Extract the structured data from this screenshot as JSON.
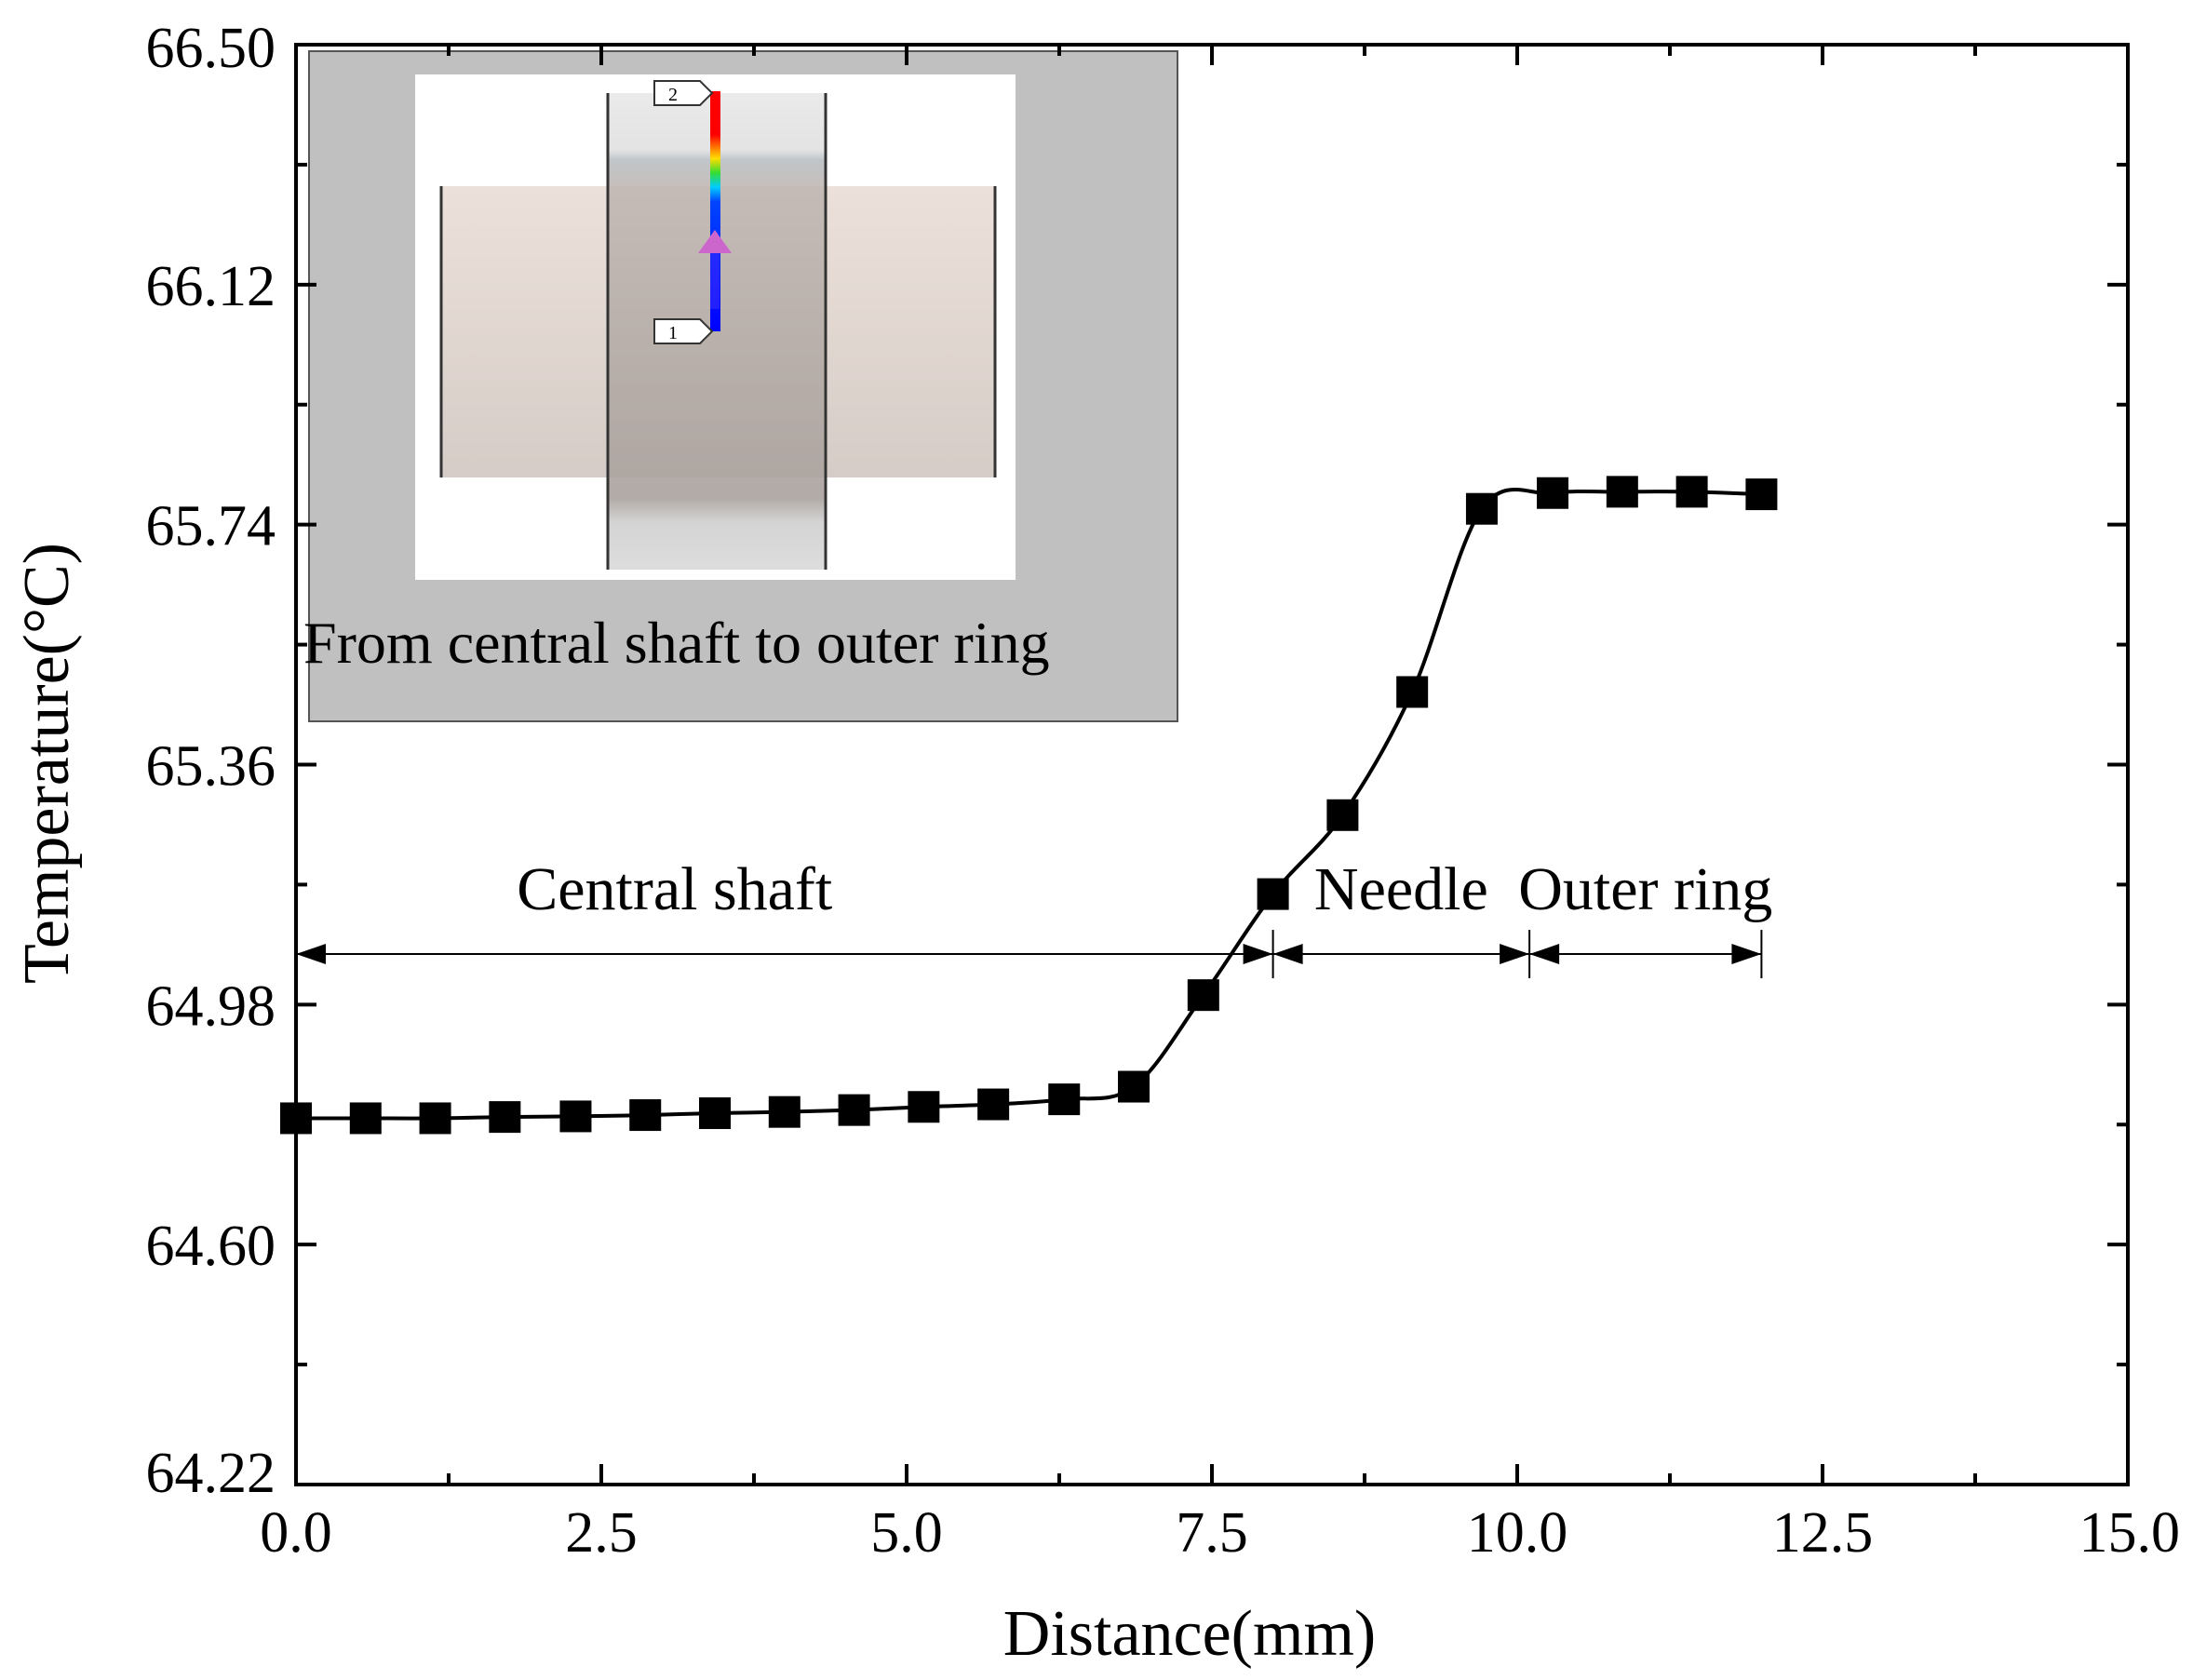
{
  "chart_data": {
    "type": "line",
    "xlabel": "Distance(mm)",
    "ylabel": "Temperature(°C)",
    "xlim": [
      0,
      15
    ],
    "ylim": [
      64.22,
      66.5
    ],
    "x_ticks": [
      0,
      2.5,
      5,
      7.5,
      10,
      12.5,
      15
    ],
    "x_tick_labels": [
      "0.0",
      "2.5",
      "5.0",
      "7.5",
      "10.0",
      "12.5",
      "15.0"
    ],
    "y_ticks": [
      64.22,
      64.6,
      64.98,
      65.36,
      65.74,
      66.12,
      66.5
    ],
    "y_tick_labels": [
      "64.22",
      "64.60",
      "64.98",
      "65.36",
      "65.74",
      "66.12",
      "66.50"
    ],
    "grid": false,
    "series": [
      {
        "name": "Temperature",
        "marker": "square",
        "color": "#000000",
        "x": [
          0.0,
          0.57,
          1.14,
          1.71,
          2.29,
          2.86,
          3.43,
          4.0,
          4.57,
          5.14,
          5.71,
          6.29,
          6.86,
          7.43,
          8.0,
          8.57,
          9.14,
          9.71,
          10.29,
          10.86,
          11.43,
          12.0
        ],
        "y": [
          64.8,
          64.8,
          64.8,
          64.802,
          64.803,
          64.805,
          64.808,
          64.81,
          64.813,
          64.818,
          64.822,
          64.83,
          64.85,
          64.995,
          65.155,
          65.28,
          65.475,
          65.765,
          65.79,
          65.792,
          65.792,
          65.788
        ]
      }
    ],
    "annotations": [
      {
        "text": "Central shaft",
        "from_x": 0.0,
        "to_x": 8.0,
        "y": 65.06
      },
      {
        "text": "Needle",
        "from_x": 8.0,
        "to_x": 10.1,
        "y": 65.06
      },
      {
        "text": "Outer ring",
        "from_x": 10.1,
        "to_x": 12.0,
        "y": 65.06
      }
    ],
    "inset": {
      "caption": "From central shaft to outer ring",
      "point_labels": [
        "2",
        "1"
      ],
      "colors": {
        "background": "#c0c0c0",
        "panel": "#ffffff",
        "body": "#e3d8d0",
        "shaft": "#b9aeaa",
        "arrow": "#cc66cc"
      }
    }
  }
}
